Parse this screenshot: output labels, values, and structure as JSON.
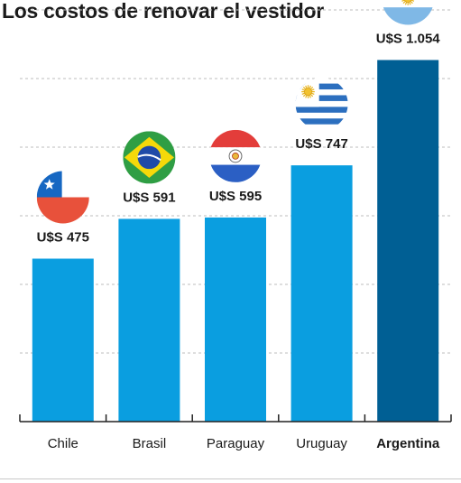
{
  "chart_data": {
    "type": "bar",
    "title": "Los costos de renovar el vestidor",
    "categories": [
      "Chile",
      "Brasil",
      "Paraguay",
      "Uruguay",
      "Argentina"
    ],
    "values": [
      475,
      591,
      595,
      747,
      1054
    ],
    "value_labels": [
      "U$S 475",
      "U$S 591",
      "U$S 595",
      "U$S 747",
      "U$S 1.054"
    ],
    "highlight_category": "Argentina",
    "ylim": [
      0,
      1200
    ],
    "grid": true,
    "xlabel": "",
    "ylabel": "",
    "flags": [
      "chile-flag-icon",
      "brazil-flag-icon",
      "paraguay-flag-icon",
      "uruguay-flag-icon",
      "argentina-flag-icon"
    ],
    "colors": {
      "bar": "#0a9ee0",
      "highlight": "#005f94",
      "grid": "#bdbdbd",
      "axis": "#222222"
    }
  }
}
